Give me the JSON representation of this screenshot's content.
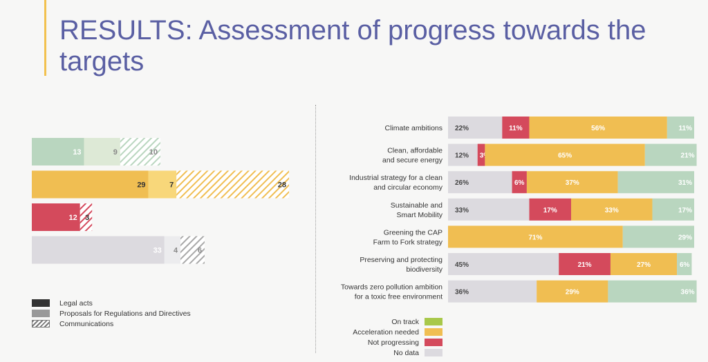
{
  "title": "RESULTS: Assessment of progress towards the targets",
  "colors": {
    "on_track": "#a8c84a",
    "acceleration": "#f0be52",
    "not_progressing": "#d44a5c",
    "no_data": "#dcdadf",
    "green_seg": "#b9d6bf"
  },
  "left_legend": {
    "legal": "Legal acts",
    "proposals": "Proposals for Regulations and Directives",
    "communications": "Communications"
  },
  "status_legend": {
    "on_track": "On track",
    "acceleration": "Acceleration needed",
    "not_progressing": "Not progressing",
    "no_data": "No data"
  },
  "chart_data": [
    {
      "type": "bar",
      "orientation": "horizontal",
      "stacked": true,
      "categories": [
        "On track",
        "Acceleration needed",
        "Not progressing",
        "No data"
      ],
      "series": [
        {
          "name": "Legal acts",
          "values": [
            13,
            29,
            12,
            33
          ]
        },
        {
          "name": "Proposals for Regulations and Directives",
          "values": [
            9,
            7,
            0,
            4
          ]
        },
        {
          "name": "Communications",
          "values": [
            10,
            28,
            3,
            6
          ]
        }
      ]
    },
    {
      "type": "bar",
      "orientation": "horizontal",
      "stacked": true,
      "unit": "%",
      "categories": [
        [
          "Climate ambitions"
        ],
        [
          "Clean, affordable",
          "and secure energy"
        ],
        [
          "Industrial strategy for a clean",
          "and circular economy"
        ],
        [
          "Sustainable and",
          "Smart Mobility"
        ],
        [
          "Greening the CAP",
          "Farm to Fork strategy"
        ],
        [
          "Preserving and protecting",
          "biodiversity"
        ],
        [
          "Towards zero pollution ambition",
          "for a toxic free environment"
        ]
      ],
      "series": [
        {
          "name": "No data",
          "values": [
            22,
            12,
            26,
            33,
            0,
            45,
            36
          ]
        },
        {
          "name": "Not progressing",
          "values": [
            11,
            3,
            6,
            17,
            0,
            21,
            0
          ]
        },
        {
          "name": "Acceleration needed",
          "values": [
            56,
            65,
            37,
            33,
            71,
            27,
            29
          ]
        },
        {
          "name": "On track",
          "values": [
            11,
            21,
            31,
            17,
            29,
            6,
            36
          ]
        }
      ]
    }
  ]
}
